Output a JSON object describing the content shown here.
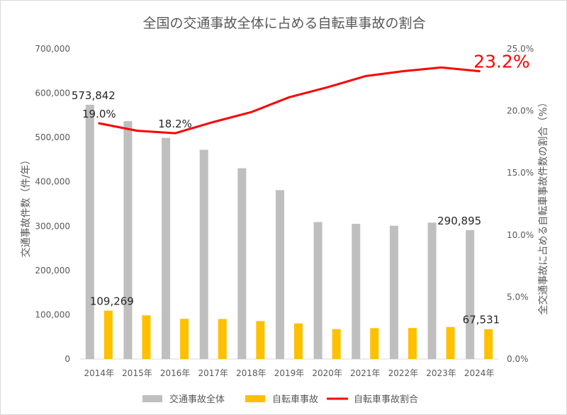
{
  "chart_data": {
    "type": "bar",
    "title": "全国の交通事故全体に占める自転車事故の割合",
    "ylabel": "交通事故件数（件/年）",
    "y2label": "全交通事故に占める自転車事故件数の割合（%）",
    "categories": [
      "2014年",
      "2015年",
      "2016年",
      "2017年",
      "2018年",
      "2019年",
      "2020年",
      "2021年",
      "2022年",
      "2023年",
      "2024年"
    ],
    "ylim": [
      0,
      700000
    ],
    "y2lim": [
      0,
      25
    ],
    "yticks": [
      "0",
      "100,000",
      "200,000",
      "300,000",
      "400,000",
      "500,000",
      "600,000",
      "700,000"
    ],
    "y2ticks": [
      "0.0%",
      "5.0%",
      "10.0%",
      "15.0%",
      "20.0%",
      "25.0%"
    ],
    "series": [
      {
        "name": "交通事故全体",
        "kind": "bar",
        "color": "#bfbfbf",
        "values": [
          573842,
          536899,
          499201,
          472165,
          430601,
          381237,
          309178,
          305196,
          300839,
          307930,
          290895
        ]
      },
      {
        "name": "自転車事故",
        "kind": "bar",
        "color": "#ffc000",
        "values": [
          109269,
          98700,
          90836,
          90407,
          85641,
          80473,
          67673,
          69694,
          69985,
          72339,
          67531
        ]
      },
      {
        "name": "自転車事故割合",
        "kind": "line",
        "axis": "right",
        "color": "#ff0000",
        "values": [
          19.0,
          18.4,
          18.2,
          19.1,
          19.9,
          21.1,
          21.9,
          22.8,
          23.2,
          23.5,
          23.2
        ]
      }
    ],
    "data_labels": [
      {
        "series": 0,
        "index": 0,
        "text": "573,842"
      },
      {
        "series": 0,
        "index": 10,
        "text": "290,895"
      },
      {
        "series": 1,
        "index": 0,
        "text": "109,269"
      },
      {
        "series": 1,
        "index": 10,
        "text": "67,531"
      },
      {
        "series": 2,
        "index": 0,
        "text": "19.0%"
      },
      {
        "series": 2,
        "index": 2,
        "text": "18.2%"
      },
      {
        "series": 2,
        "index": 10,
        "text": "23.2%",
        "highlight": true
      }
    ],
    "legend_position": "bottom",
    "grid": false
  }
}
